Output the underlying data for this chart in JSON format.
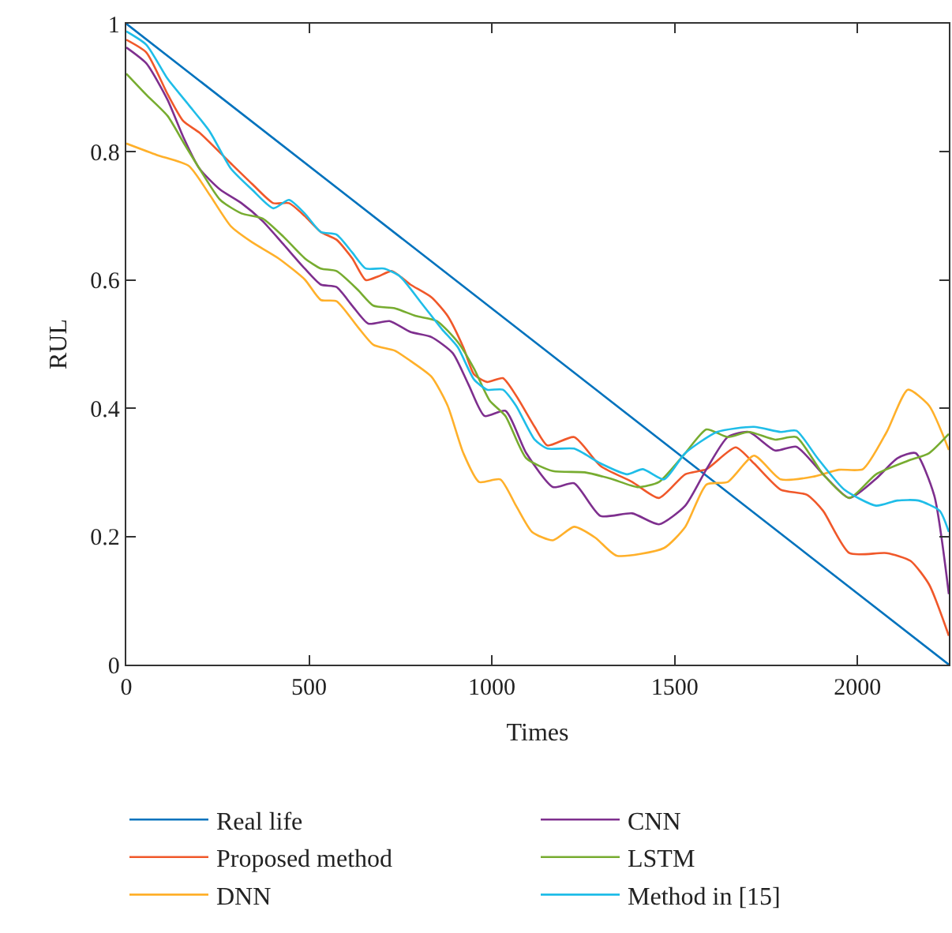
{
  "chart_data": {
    "type": "line",
    "xlabel": "Times",
    "ylabel": "RUL",
    "xlim": [
      0,
      2250
    ],
    "ylim": [
      0,
      1
    ],
    "xticks": [
      0,
      500,
      1000,
      1500,
      2000
    ],
    "yticks": [
      0,
      0.2,
      0.4,
      0.6,
      0.8,
      1
    ],
    "legend": "bottom",
    "line_style": "solid",
    "marker": "none",
    "series": [
      {
        "name": "Real life",
        "color": "#0072bd",
        "x": [
          0,
          2250
        ],
        "values": [
          1,
          0
        ]
      },
      {
        "name": "Proposed method",
        "color": "#f0582a",
        "x": [
          0,
          55,
          113,
          156,
          200,
          286,
          344,
          402,
          445,
          488,
          532,
          575,
          618,
          655,
          690,
          727,
          777,
          835,
          879,
          922,
          951,
          987,
          1030,
          1066,
          1117,
          1152,
          1225,
          1297,
          1384,
          1457,
          1529,
          1587,
          1667,
          1717,
          1790,
          1862,
          1906,
          1978,
          2080,
          2145,
          2196,
          2250
        ],
        "values": [
          0.975,
          0.955,
          0.89,
          0.848,
          0.83,
          0.782,
          0.75,
          0.72,
          0.72,
          0.7,
          0.675,
          0.663,
          0.634,
          0.6,
          0.606,
          0.614,
          0.593,
          0.573,
          0.544,
          0.495,
          0.453,
          0.441,
          0.447,
          0.42,
          0.371,
          0.342,
          0.355,
          0.31,
          0.285,
          0.26,
          0.297,
          0.305,
          0.339,
          0.314,
          0.273,
          0.265,
          0.24,
          0.174,
          0.174,
          0.162,
          0.125,
          0.045
        ]
      },
      {
        "name": "DNN",
        "color": "#ffb02a",
        "x": [
          0,
          84,
          171,
          228,
          286,
          344,
          416,
          488,
          532,
          575,
          633,
          676,
          734,
          777,
          835,
          879,
          922,
          965,
          1023,
          1066,
          1110,
          1167,
          1225,
          1283,
          1341,
          1471,
          1529,
          1587,
          1645,
          1717,
          1790,
          1877,
          1949,
          2015,
          2080,
          2138,
          2196,
          2250
        ],
        "values": [
          0.813,
          0.795,
          0.778,
          0.733,
          0.684,
          0.659,
          0.634,
          0.601,
          0.569,
          0.567,
          0.527,
          0.499,
          0.49,
          0.474,
          0.449,
          0.404,
          0.33,
          0.285,
          0.289,
          0.248,
          0.207,
          0.194,
          0.215,
          0.198,
          0.17,
          0.182,
          0.215,
          0.281,
          0.285,
          0.326,
          0.289,
          0.293,
          0.304,
          0.305,
          0.363,
          0.429,
          0.404,
          0.335
        ]
      },
      {
        "name": "CNN",
        "color": "#7e2f8e",
        "x": [
          0,
          55,
          113,
          156,
          200,
          257,
          315,
          373,
          431,
          488,
          532,
          575,
          618,
          662,
          720,
          777,
          835,
          893,
          936,
          980,
          1037,
          1094,
          1167,
          1225,
          1297,
          1384,
          1457,
          1529,
          1587,
          1645,
          1703,
          1775,
          1833,
          1906,
          1978,
          2051,
          2109,
          2159,
          2210,
          2250
        ],
        "values": [
          0.963,
          0.938,
          0.881,
          0.823,
          0.774,
          0.741,
          0.72,
          0.692,
          0.655,
          0.618,
          0.593,
          0.589,
          0.56,
          0.532,
          0.536,
          0.519,
          0.511,
          0.486,
          0.437,
          0.388,
          0.396,
          0.33,
          0.277,
          0.283,
          0.232,
          0.236,
          0.219,
          0.248,
          0.305,
          0.355,
          0.363,
          0.334,
          0.34,
          0.297,
          0.26,
          0.29,
          0.322,
          0.33,
          0.264,
          0.11
        ]
      },
      {
        "name": "LSTM",
        "color": "#77ac30",
        "x": [
          0,
          55,
          113,
          156,
          200,
          257,
          315,
          373,
          431,
          488,
          532,
          575,
          633,
          676,
          734,
          792,
          850,
          907,
          951,
          994,
          1037,
          1094,
          1167,
          1254,
          1326,
          1399,
          1457,
          1529,
          1587,
          1645,
          1703,
          1775,
          1833,
          1906,
          1978,
          2051,
          2138,
          2196,
          2250
        ],
        "values": [
          0.922,
          0.889,
          0.856,
          0.815,
          0.774,
          0.725,
          0.704,
          0.696,
          0.667,
          0.634,
          0.618,
          0.614,
          0.585,
          0.56,
          0.556,
          0.544,
          0.536,
          0.503,
          0.462,
          0.412,
          0.388,
          0.322,
          0.302,
          0.3,
          0.29,
          0.277,
          0.285,
          0.33,
          0.367,
          0.355,
          0.363,
          0.351,
          0.355,
          0.297,
          0.26,
          0.297,
          0.318,
          0.33,
          0.36
        ]
      },
      {
        "name": "Method in [15]",
        "color": "#1fbde8",
        "x": [
          0,
          55,
          113,
          171,
          228,
          286,
          344,
          402,
          445,
          488,
          532,
          575,
          618,
          655,
          705,
          748,
          806,
          864,
          907,
          951,
          987,
          1030,
          1066,
          1117,
          1152,
          1225,
          1297,
          1370,
          1413,
          1471,
          1529,
          1616,
          1717,
          1790,
          1833,
          1891,
          1964,
          2051,
          2109,
          2167,
          2225,
          2250
        ],
        "values": [
          0.988,
          0.967,
          0.914,
          0.873,
          0.832,
          0.774,
          0.741,
          0.712,
          0.725,
          0.704,
          0.675,
          0.671,
          0.643,
          0.618,
          0.618,
          0.606,
          0.565,
          0.523,
          0.495,
          0.445,
          0.429,
          0.429,
          0.404,
          0.351,
          0.337,
          0.337,
          0.314,
          0.297,
          0.305,
          0.289,
          0.33,
          0.363,
          0.371,
          0.363,
          0.365,
          0.322,
          0.273,
          0.248,
          0.256,
          0.256,
          0.24,
          0.207
        ]
      }
    ]
  }
}
